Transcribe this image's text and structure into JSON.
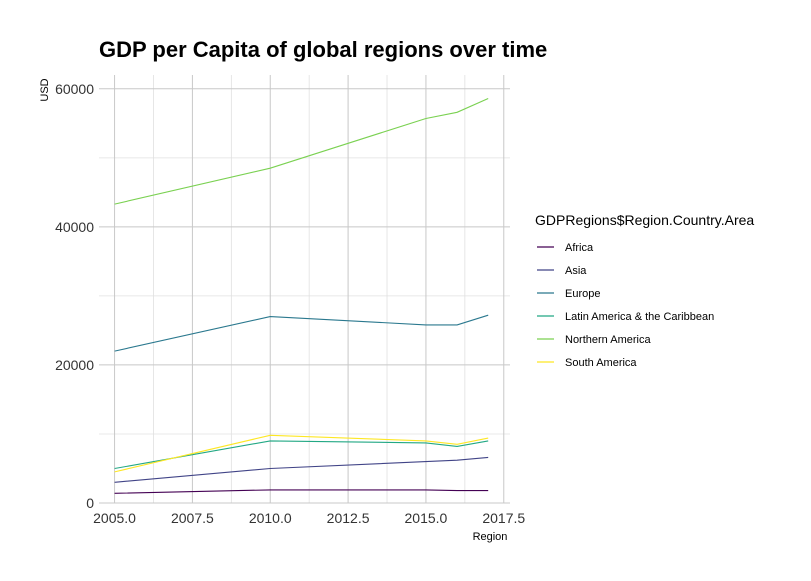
{
  "chart_data": {
    "type": "line",
    "title": "GDP per Capita of global regions over time",
    "xlabel": "Region",
    "ylabel": "USD",
    "xlim": [
      2005,
      2017
    ],
    "ylim": [
      0,
      62000
    ],
    "x_ticks": [
      2005.0,
      2007.5,
      2010.0,
      2012.5,
      2015.0,
      2017.5
    ],
    "x_tick_labels": [
      "2005.0",
      "2007.5",
      "2010.0",
      "2012.5",
      "2015.0",
      "2017.5"
    ],
    "y_ticks": [
      0,
      20000,
      40000,
      60000
    ],
    "y_tick_labels": [
      "0",
      "20000",
      "40000",
      "60000"
    ],
    "grid": true,
    "legend_title": "GDPRegions$Region.Country.Area",
    "legend_position": "right",
    "x": [
      2005,
      2010,
      2015,
      2016,
      2017
    ],
    "series": [
      {
        "name": "Africa",
        "color": "#440154",
        "values": [
          1400,
          1900,
          1900,
          1800,
          1800
        ]
      },
      {
        "name": "Asia",
        "color": "#414487",
        "values": [
          3000,
          5000,
          6000,
          6200,
          6600
        ]
      },
      {
        "name": "Europe",
        "color": "#2a788e",
        "values": [
          22000,
          27000,
          25800,
          25800,
          27200
        ]
      },
      {
        "name": "Latin America & the Caribbean",
        "color": "#22a884",
        "values": [
          5000,
          9000,
          8700,
          8200,
          9000
        ]
      },
      {
        "name": "Northern America",
        "color": "#7ad151",
        "values": [
          43300,
          48500,
          55700,
          56600,
          58600
        ]
      },
      {
        "name": "South America",
        "color": "#fde725",
        "values": [
          4500,
          9800,
          9000,
          8500,
          9400
        ]
      }
    ]
  }
}
